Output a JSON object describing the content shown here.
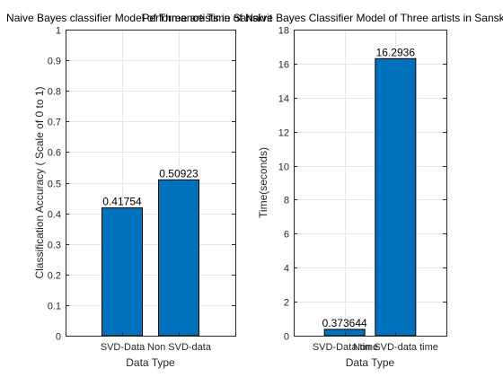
{
  "chart_data": [
    {
      "type": "bar",
      "title": "Naive Bayes classifier Model of Three artists in Sanskrit",
      "xlabel": "Data Type",
      "ylabel": "Classification Accuracy ( Scale of 0 to 1)",
      "categories": [
        "SVD-Data",
        "Non SVD-data"
      ],
      "values": [
        0.41754,
        0.50923
      ],
      "data_labels": [
        "0.41754",
        "0.50923"
      ],
      "ylim": [
        0,
        1
      ],
      "yticks": [
        0,
        0.1,
        0.2,
        0.3,
        0.4,
        0.5,
        0.6,
        0.7,
        0.8,
        0.9,
        1
      ],
      "ytick_labels": [
        "0",
        "0.1",
        "0.2",
        "0.3",
        "0.4",
        "0.5",
        "0.6",
        "0.7",
        "0.8",
        "0.9",
        "1"
      ],
      "grid": true,
      "bar_color": "#0072bd"
    },
    {
      "type": "bar",
      "title": "Performance Time of Naive Bayes Classifier Model of Three artists in Sanskrit",
      "xlabel": "Data Type",
      "ylabel": "Time(seconds)",
      "categories": [
        "SVD-Data time",
        "Non SVD-data time"
      ],
      "values": [
        0.373644,
        16.2936
      ],
      "data_labels": [
        "0.373644",
        "16.2936"
      ],
      "ylim": [
        0,
        18
      ],
      "yticks": [
        0,
        2,
        4,
        6,
        8,
        10,
        12,
        14,
        16,
        18
      ],
      "ytick_labels": [
        "0",
        "2",
        "4",
        "6",
        "8",
        "10",
        "12",
        "14",
        "16",
        "18"
      ],
      "grid": true,
      "bar_color": "#0072bd"
    }
  ]
}
